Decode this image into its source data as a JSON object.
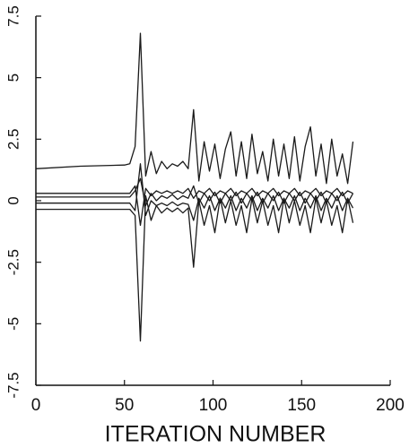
{
  "chart_data": {
    "type": "line",
    "x_label": "ITERATION NUMBER",
    "x": [
      0,
      25,
      50,
      53,
      56,
      59,
      62,
      65,
      68,
      71,
      74,
      77,
      80,
      83,
      86,
      89,
      92,
      95,
      98,
      101,
      104,
      107,
      110,
      113,
      116,
      119,
      122,
      125,
      128,
      131,
      134,
      137,
      140,
      143,
      146,
      149,
      152,
      155,
      158,
      161,
      164,
      167,
      170,
      173,
      176,
      179
    ],
    "series": [
      {
        "color": "#1a1a1a",
        "values": [
          1.3,
          1.4,
          1.45,
          1.5,
          2.2,
          6.8,
          1.0,
          2.0,
          1.1,
          1.6,
          1.3,
          1.5,
          1.4,
          1.6,
          1.3,
          3.7,
          0.8,
          2.4,
          1.2,
          2.3,
          0.9,
          2.1,
          2.8,
          1.0,
          2.4,
          0.9,
          2.7,
          1.1,
          2.0,
          0.8,
          2.5,
          1.0,
          2.3,
          0.9,
          2.6,
          0.8,
          2.2,
          3.0,
          1.0,
          2.3,
          0.7,
          2.5,
          1.0,
          1.9,
          0.7,
          2.4
        ]
      },
      {
        "color": "#1a1a1a",
        "values": [
          0.3,
          0.3,
          0.3,
          0.3,
          0.6,
          -1.0,
          0.5,
          0.2,
          0.4,
          0.3,
          0.4,
          0.3,
          0.4,
          0.3,
          0.5,
          0.1,
          0.4,
          0.3,
          0.5,
          0.2,
          0.4,
          0.3,
          0.5,
          0.2,
          0.4,
          0.3,
          0.5,
          0.2,
          0.4,
          0.3,
          0.5,
          0.2,
          0.4,
          0.3,
          0.5,
          0.2,
          0.4,
          0.3,
          0.5,
          0.2,
          0.4,
          0.3,
          0.5,
          0.2,
          0.4,
          0.3
        ]
      },
      {
        "color": "#1a1a1a",
        "values": [
          0.15,
          0.15,
          0.15,
          0.15,
          0.4,
          0.9,
          -0.2,
          0.3,
          0.0,
          0.2,
          0.1,
          0.25,
          0.05,
          0.2,
          0.1,
          0.6,
          -0.1,
          0.3,
          0.0,
          0.35,
          -0.1,
          0.3,
          0.0,
          0.35,
          -0.1,
          0.3,
          0.0,
          0.35,
          -0.1,
          0.3,
          0.0,
          0.35,
          -0.1,
          0.3,
          0.0,
          0.35,
          -0.1,
          0.3,
          0.0,
          0.35,
          -0.1,
          0.3,
          0.0,
          0.35,
          -0.1,
          0.3
        ]
      },
      {
        "color": "#1a1a1a",
        "values": [
          -0.1,
          -0.1,
          -0.1,
          -0.1,
          -0.4,
          1.5,
          -0.6,
          0.0,
          -0.2,
          -0.1,
          -0.2,
          -0.05,
          -0.2,
          -0.1,
          -0.15,
          -0.8,
          0.1,
          -0.3,
          0.2,
          -0.4,
          0.1,
          -0.3,
          0.2,
          -0.4,
          0.1,
          -0.3,
          0.2,
          -0.4,
          0.1,
          -0.3,
          0.2,
          -0.4,
          0.1,
          -0.3,
          0.2,
          -0.4,
          0.1,
          -0.3,
          0.2,
          -0.4,
          0.1,
          -0.3,
          0.2,
          -0.4,
          0.1,
          -0.3
        ]
      },
      {
        "color": "#1a1a1a",
        "values": [
          -0.35,
          -0.35,
          -0.35,
          -0.35,
          -0.6,
          -5.7,
          0.2,
          -0.8,
          -0.2,
          -0.5,
          -0.3,
          -0.45,
          -0.3,
          -0.5,
          -0.3,
          -2.7,
          0.0,
          -1.0,
          -0.2,
          -1.3,
          0.1,
          -0.9,
          0.0,
          -1.0,
          -0.2,
          -1.3,
          0.1,
          -0.9,
          0.0,
          -1.0,
          -0.2,
          -1.3,
          0.1,
          -0.9,
          0.0,
          -1.0,
          -0.2,
          -1.3,
          0.1,
          -0.9,
          0.0,
          -1.0,
          -0.2,
          -1.3,
          0.1,
          -0.9
        ]
      }
    ],
    "xlim": [
      0,
      200
    ],
    "xticks": [
      0,
      50,
      100,
      150,
      200
    ],
    "ylim": [
      -7.5,
      7.5
    ],
    "yticks": [
      -7.5,
      -5,
      -2.5,
      0,
      2.5,
      5,
      7.5
    ],
    "grid": false
  }
}
